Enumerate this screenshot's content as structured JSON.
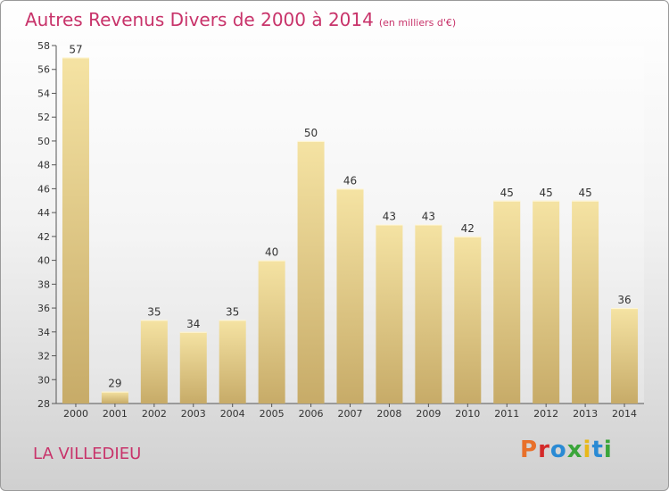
{
  "title": "Autres Revenus Divers de 2000 à 2014",
  "subtitle": "(en milliers d'€)",
  "location": "LA VILLEDIEU",
  "logo": {
    "text": "Proxiti",
    "colors": [
      "#e8702a",
      "#d42a2a",
      "#2a8ad4",
      "#3aa53a",
      "#e8b81a",
      "#2a8ad4",
      "#3aa53a"
    ]
  },
  "colors": {
    "bar_top": "#f5e3a3",
    "bar_bottom": "#c7ab68",
    "title": "#c8336a"
  },
  "chart_data": {
    "type": "bar",
    "categories": [
      "2000",
      "2001",
      "2002",
      "2003",
      "2004",
      "2005",
      "2006",
      "2007",
      "2008",
      "2009",
      "2010",
      "2011",
      "2012",
      "2013",
      "2014"
    ],
    "values": [
      57,
      29,
      35,
      34,
      35,
      40,
      50,
      46,
      43,
      43,
      42,
      45,
      45,
      45,
      36
    ],
    "ylim": [
      28,
      58
    ],
    "yticks": [
      28,
      30,
      32,
      34,
      36,
      38,
      40,
      42,
      44,
      46,
      48,
      50,
      52,
      54,
      56,
      58
    ],
    "grid": false
  }
}
